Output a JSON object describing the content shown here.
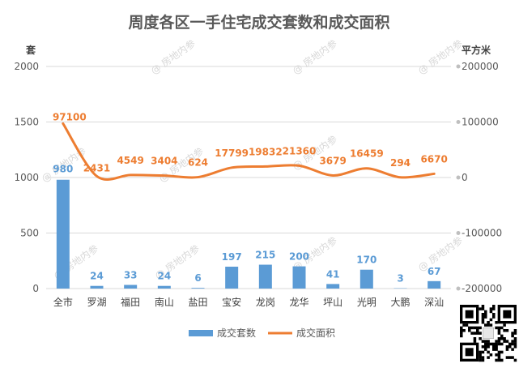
{
  "chart_data": {
    "type": "bar",
    "title": "周度各区一手住宅成交套数和成交面积",
    "categories": [
      "全市",
      "罗湖",
      "福田",
      "南山",
      "盐田",
      "宝安",
      "龙岗",
      "龙华",
      "坪山",
      "光明",
      "大鹏",
      "深汕"
    ],
    "y_left": {
      "unit_label": "套",
      "ylim": [
        0,
        2000
      ],
      "ticks": [
        0,
        500,
        1000,
        1500,
        2000
      ]
    },
    "y_right": {
      "unit_label": "平方米",
      "ylim": [
        -200000,
        200000
      ],
      "ticks": [
        -200000,
        -100000,
        0,
        100000,
        200000
      ]
    },
    "series": [
      {
        "name": "成交套数",
        "type": "bar",
        "axis": "left",
        "color": "#5b9bd5",
        "values": [
          980,
          24,
          33,
          24,
          6,
          197,
          215,
          200,
          41,
          170,
          3,
          67
        ]
      },
      {
        "name": "成交面积",
        "type": "line",
        "axis": "right",
        "color": "#ed7d31",
        "values": [
          97100,
          2431,
          4549,
          3404,
          624,
          17799,
          19832,
          21360,
          3679,
          16459,
          294,
          6670
        ]
      }
    ],
    "grid": true,
    "legend_position": "bottom"
  },
  "watermark_text": "@ 房地内参"
}
